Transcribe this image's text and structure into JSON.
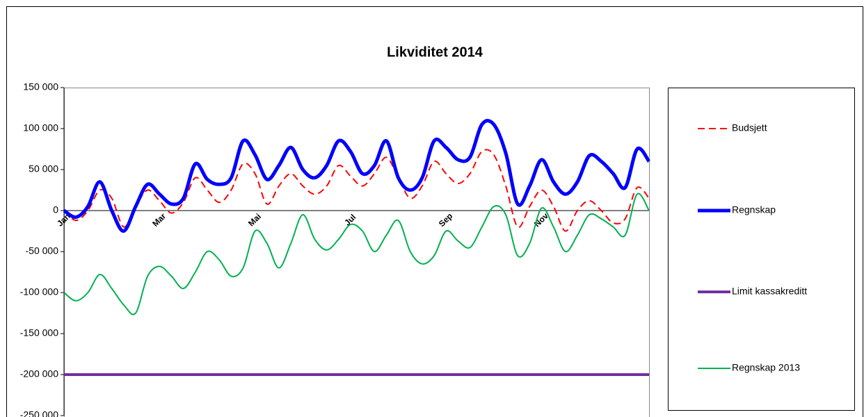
{
  "chart_data": {
    "type": "line",
    "title": "Likviditet 2014",
    "categories": [
      "Jan",
      null,
      null,
      null,
      null,
      null,
      null,
      null,
      "Mar",
      null,
      null,
      null,
      null,
      null,
      null,
      null,
      "Mai",
      null,
      null,
      null,
      null,
      null,
      null,
      null,
      "Jul",
      null,
      null,
      null,
      null,
      null,
      null,
      null,
      "Sep",
      null,
      null,
      null,
      null,
      null,
      null,
      null,
      "Nov",
      null,
      null,
      null,
      null,
      null,
      null,
      null,
      null,
      null
    ],
    "series": [
      {
        "name": "Budsjett",
        "color": "#ff0000",
        "line_style": "dashed",
        "line_width": 2,
        "values": [
          0,
          -12000,
          0,
          25000,
          15000,
          -20000,
          5000,
          25000,
          12000,
          -3000,
          10000,
          40000,
          25000,
          10000,
          25000,
          57000,
          45000,
          8000,
          30000,
          45000,
          30000,
          20000,
          30000,
          55000,
          42000,
          30000,
          45000,
          65000,
          40000,
          15000,
          30000,
          60000,
          45000,
          33000,
          45000,
          72000,
          68000,
          30000,
          -20000,
          5000,
          25000,
          5000,
          -25000,
          0,
          12000,
          0,
          -15000,
          -10000,
          28000,
          15000
        ]
      },
      {
        "name": "Regnskap",
        "color": "#0000ff",
        "line_style": "solid",
        "line_width": 5,
        "values": [
          0,
          -8000,
          5000,
          35000,
          0,
          -25000,
          5000,
          32000,
          20000,
          8000,
          15000,
          57000,
          38000,
          32000,
          40000,
          85000,
          68000,
          38000,
          55000,
          77000,
          50000,
          40000,
          55000,
          85000,
          72000,
          45000,
          55000,
          85000,
          40000,
          25000,
          40000,
          85000,
          77000,
          62000,
          65000,
          105000,
          105000,
          70000,
          8000,
          30000,
          62000,
          35000,
          20000,
          35000,
          67000,
          60000,
          45000,
          28000,
          75000,
          60000
        ]
      },
      {
        "name": "Limit kassakreditt",
        "color": "#7030a0",
        "line_style": "solid",
        "line_width": 4,
        "values": [
          -200000,
          -200000,
          -200000,
          -200000,
          -200000,
          -200000,
          -200000,
          -200000,
          -200000,
          -200000,
          -200000,
          -200000,
          -200000,
          -200000,
          -200000,
          -200000,
          -200000,
          -200000,
          -200000,
          -200000,
          -200000,
          -200000,
          -200000,
          -200000,
          -200000,
          -200000,
          -200000,
          -200000,
          -200000,
          -200000,
          -200000,
          -200000,
          -200000,
          -200000,
          -200000,
          -200000,
          -200000,
          -200000,
          -200000,
          -200000,
          -200000,
          -200000,
          -200000,
          -200000,
          -200000,
          -200000,
          -200000,
          -200000,
          -200000,
          -200000
        ]
      },
      {
        "name": "Regnskap 2013",
        "color": "#00b050",
        "line_style": "solid",
        "line_width": 2,
        "values": [
          -100000,
          -110000,
          -100000,
          -78000,
          -95000,
          -115000,
          -125000,
          -80000,
          -68000,
          -80000,
          -95000,
          -75000,
          -50000,
          -60000,
          -80000,
          -70000,
          -25000,
          -40000,
          -70000,
          -40000,
          -5000,
          -35000,
          -48000,
          -35000,
          -17000,
          -25000,
          -50000,
          -30000,
          -12000,
          -50000,
          -65000,
          -55000,
          -25000,
          -37000,
          -45000,
          -20000,
          5000,
          -5000,
          -55000,
          -40000,
          3000,
          -20000,
          -50000,
          -30000,
          -5000,
          -10000,
          -20000,
          -30000,
          20000,
          0
        ]
      }
    ],
    "ylim": [
      -250000,
      150000
    ],
    "yticks": [
      {
        "value": -250000,
        "label": "-250 000"
      },
      {
        "value": -200000,
        "label": "-200 000"
      },
      {
        "value": -150000,
        "label": "-150 000"
      },
      {
        "value": -100000,
        "label": "-100 000"
      },
      {
        "value": -50000,
        "label": "-50 000"
      },
      0,
      {
        "value": 50000,
        "label": "50 000"
      },
      {
        "value": 100000,
        "label": "100 000"
      },
      {
        "value": 150000,
        "label": "150 000"
      }
    ],
    "smooth": true,
    "legend": "right"
  }
}
